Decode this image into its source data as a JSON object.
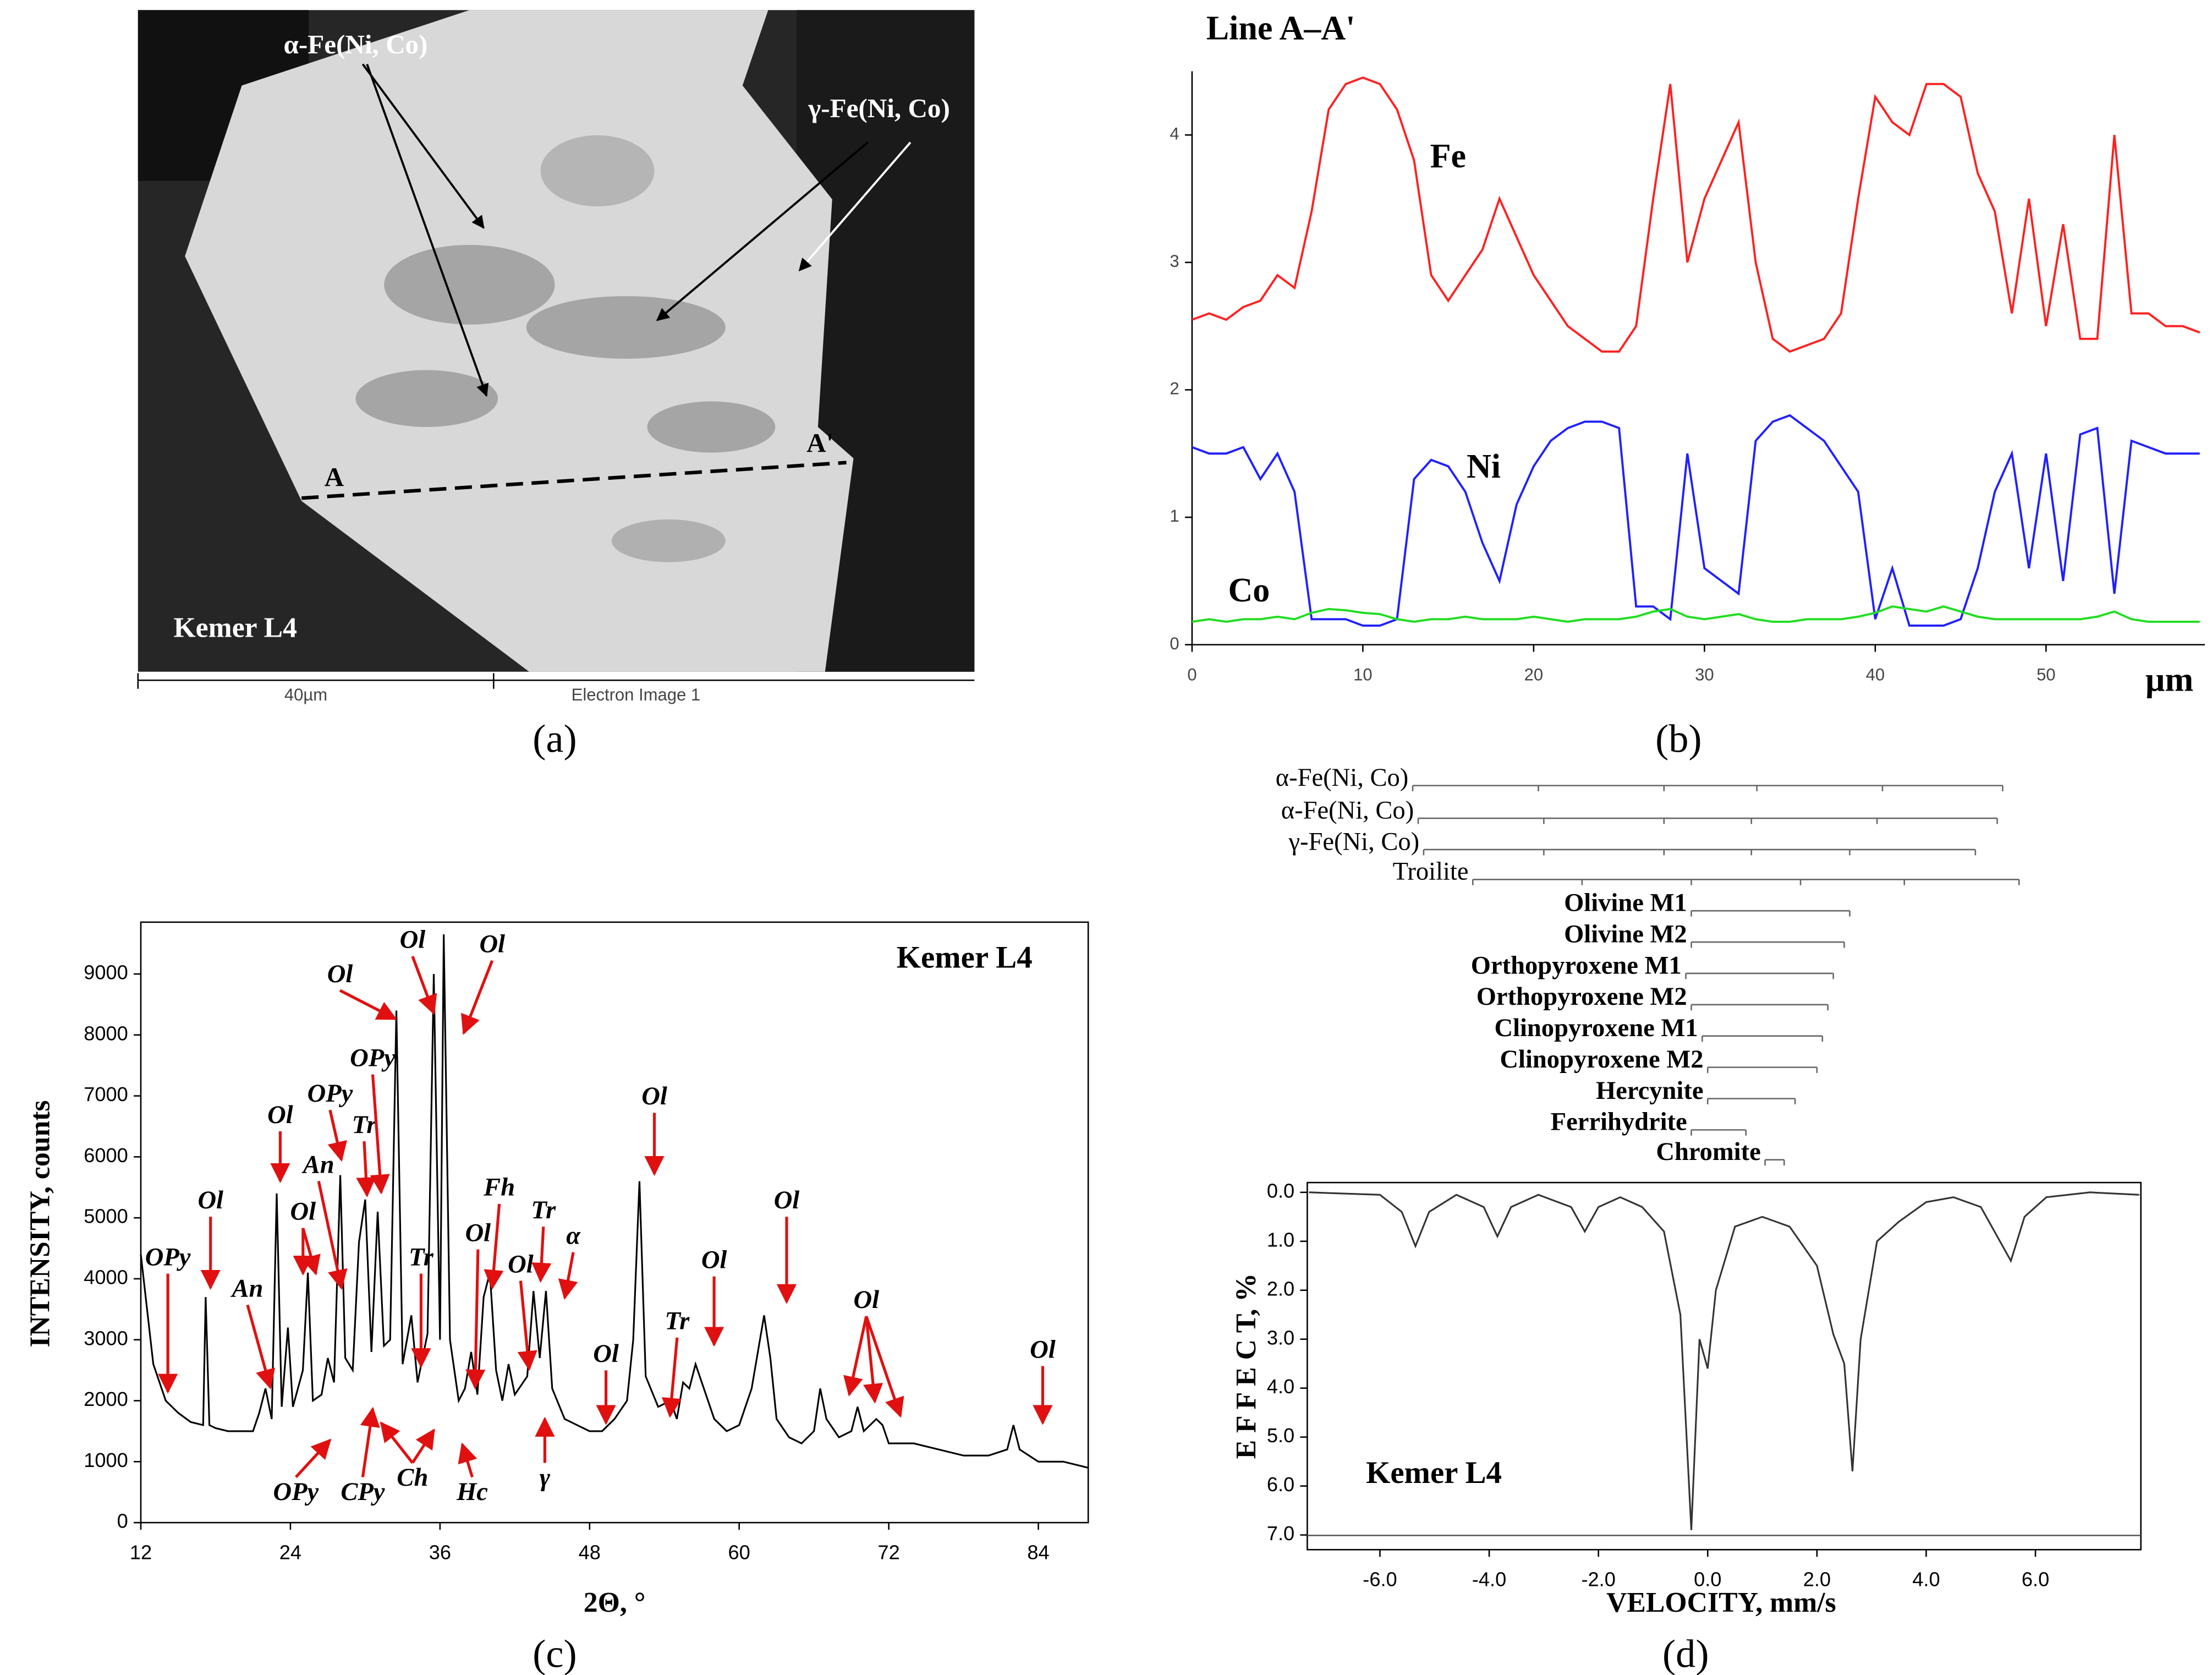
{
  "image_panel": {
    "phase_alpha": "α-Fe(Ni, Co)",
    "phase_gamma": "γ-Fe(Ni, Co)",
    "point_a": "A",
    "point_a2": "A'",
    "sample": "Kemer L4",
    "scale": "40µm",
    "caption": "Electron Image 1"
  },
  "panel_labels": [
    "(a)",
    "(b)",
    "(c)",
    "(d)"
  ],
  "chart_data": [
    {
      "type": "line",
      "title": "Line A–A'",
      "x_unit": "µm",
      "x": [
        0,
        1,
        2,
        3,
        4,
        5,
        6,
        7,
        8,
        9,
        10,
        11,
        12,
        13,
        14,
        15,
        16,
        17,
        18,
        19,
        20,
        21,
        22,
        23,
        24,
        25,
        26,
        27,
        28,
        29,
        30,
        31,
        32,
        33,
        34,
        35,
        36,
        37,
        38,
        39,
        40,
        41,
        42,
        43,
        44,
        45,
        46,
        47,
        48,
        49,
        50,
        51,
        52,
        53,
        54,
        55,
        56,
        57,
        58,
        59
      ],
      "xlim": [
        0,
        59.3
      ],
      "xticks": [
        0,
        10,
        20,
        30,
        40,
        50
      ],
      "ylim": [
        0,
        4.5
      ],
      "yticks": [
        0,
        1,
        2,
        3,
        4
      ],
      "series": [
        {
          "name": "Fe",
          "color": "#ff2020",
          "values": [
            2.55,
            2.6,
            2.55,
            2.65,
            2.7,
            2.9,
            2.8,
            3.4,
            4.2,
            4.4,
            4.45,
            4.4,
            4.2,
            3.8,
            2.9,
            2.7,
            2.9,
            3.1,
            3.5,
            3.2,
            2.9,
            2.7,
            2.5,
            2.4,
            2.3,
            2.3,
            2.5,
            3.5,
            4.4,
            3.0,
            3.5,
            3.8,
            4.1,
            3.0,
            2.4,
            2.3,
            2.35,
            2.4,
            2.6,
            3.5,
            4.3,
            4.1,
            4.0,
            4.4,
            4.4,
            4.3,
            3.7,
            3.4,
            2.6,
            3.5,
            2.5,
            3.3,
            2.4,
            2.4,
            4.0,
            2.6,
            2.6,
            2.5,
            2.5,
            2.45
          ]
        },
        {
          "name": "Ni",
          "color": "#2020ff",
          "values": [
            1.55,
            1.5,
            1.5,
            1.55,
            1.3,
            1.5,
            1.2,
            0.2,
            0.2,
            0.2,
            0.15,
            0.15,
            0.2,
            1.3,
            1.45,
            1.4,
            1.2,
            0.8,
            0.5,
            1.1,
            1.4,
            1.6,
            1.7,
            1.75,
            1.75,
            1.7,
            0.3,
            0.3,
            0.2,
            1.5,
            0.6,
            0.5,
            0.4,
            1.6,
            1.75,
            1.8,
            1.7,
            1.6,
            1.4,
            1.2,
            0.2,
            0.6,
            0.15,
            0.15,
            0.15,
            0.2,
            0.6,
            1.2,
            1.5,
            0.6,
            1.5,
            0.5,
            1.65,
            1.7,
            0.4,
            1.6,
            1.55,
            1.5,
            1.5,
            1.5
          ]
        },
        {
          "name": "Co",
          "color": "#20dd20",
          "values": [
            0.18,
            0.2,
            0.18,
            0.2,
            0.2,
            0.22,
            0.2,
            0.25,
            0.28,
            0.27,
            0.25,
            0.24,
            0.2,
            0.18,
            0.2,
            0.2,
            0.22,
            0.2,
            0.2,
            0.2,
            0.22,
            0.2,
            0.18,
            0.2,
            0.2,
            0.2,
            0.22,
            0.26,
            0.28,
            0.22,
            0.2,
            0.22,
            0.24,
            0.2,
            0.18,
            0.18,
            0.2,
            0.2,
            0.2,
            0.22,
            0.25,
            0.3,
            0.28,
            0.26,
            0.3,
            0.26,
            0.22,
            0.2,
            0.2,
            0.2,
            0.2,
            0.2,
            0.2,
            0.22,
            0.26,
            0.2,
            0.18,
            0.18,
            0.18,
            0.18
          ]
        }
      ]
    },
    {
      "type": "line",
      "title": "Kemer L4",
      "xlabel": "2Θ, °",
      "ylabel": "INTENSITY, counts",
      "color": "#000000",
      "x": [
        12,
        12.5,
        13,
        14,
        15,
        16,
        17,
        17.2,
        17.5,
        18,
        19,
        20,
        21,
        21.5,
        22,
        22.5,
        22.9,
        23.3,
        23.8,
        24.2,
        25,
        25.4,
        25.8,
        26.5,
        27,
        27.5,
        28,
        28.4,
        29,
        29.5,
        30,
        30.5,
        31,
        31.5,
        32,
        32.5,
        33,
        33.7,
        34.2,
        35,
        35.5,
        36,
        36.3,
        36.8,
        37.5,
        38,
        38.5,
        39,
        39.5,
        40,
        40.5,
        41,
        41.5,
        42,
        43,
        43.5,
        44,
        44.5,
        45,
        46,
        47,
        48,
        49,
        50,
        51,
        51.5,
        52,
        52.5,
        53.5,
        54.5,
        55,
        55.5,
        56,
        56.5,
        57,
        58,
        59,
        60,
        61,
        61.5,
        62,
        62.5,
        63,
        64,
        65,
        66,
        66.5,
        67,
        68,
        69,
        69.5,
        70,
        71,
        71.5,
        72,
        74,
        76,
        78,
        80,
        81.5,
        82,
        82.5,
        84,
        86,
        88
      ],
      "values": [
        4400,
        3500,
        2600,
        2000,
        1800,
        1650,
        1600,
        3700,
        1600,
        1550,
        1500,
        1500,
        1500,
        1800,
        2200,
        1700,
        5400,
        1900,
        3200,
        1900,
        2500,
        4100,
        2000,
        2100,
        2700,
        2300,
        5700,
        2700,
        2500,
        4600,
        5300,
        2800,
        5100,
        2900,
        3000,
        8400,
        2600,
        3400,
        2300,
        3100,
        9000,
        3000,
        9650,
        3000,
        2000,
        2200,
        2800,
        2100,
        3700,
        4100,
        2500,
        2000,
        2600,
        2100,
        2400,
        3800,
        2700,
        3800,
        2200,
        1700,
        1600,
        1500,
        1500,
        1700,
        2000,
        3000,
        5600,
        2400,
        1900,
        2000,
        1700,
        2300,
        2200,
        2600,
        2300,
        1700,
        1500,
        1600,
        2200,
        2800,
        3400,
        2700,
        1700,
        1400,
        1300,
        1500,
        2200,
        1700,
        1400,
        1500,
        1900,
        1500,
        1700,
        1600,
        1300,
        1300,
        1200,
        1100,
        1100,
        1200,
        1600,
        1200,
        1000,
        1000,
        900
      ],
      "xlim": [
        12,
        88
      ],
      "xticks": [
        12,
        24,
        36,
        48,
        60,
        72,
        84
      ],
      "ylim": [
        0,
        9850
      ],
      "yticks": [
        0,
        1000,
        2000,
        3000,
        4000,
        5000,
        6000,
        7000,
        8000,
        9000
      ],
      "annotations": [
        "OPy",
        "Ol",
        "An",
        "Ol",
        "Ol",
        "An",
        "OPy",
        "Tr",
        "OPy",
        "Ol",
        "Ol",
        "Ol",
        "Tr",
        "Ol",
        "Fh",
        "Ol",
        "Tr",
        "α",
        "Ol",
        "Ol",
        "Tr",
        "Ol",
        "Ol",
        "Ol",
        "Ol",
        "OPy",
        "CPy",
        "Ch",
        "Hc",
        "γ"
      ]
    },
    {
      "type": "line",
      "title": "Kemer L4",
      "xlabel": "VELOCITY, mm/s",
      "ylabel": "E F F E C T, %",
      "color": "#333333",
      "y_inverted": true,
      "x": [
        -7.3,
        -6,
        -5.6,
        -5.35,
        -5.1,
        -4.6,
        -4.1,
        -3.85,
        -3.6,
        -3.1,
        -2.5,
        -2.25,
        -2.0,
        -1.6,
        -1.2,
        -0.8,
        -0.5,
        -0.3,
        -0.15,
        0.0,
        0.15,
        0.5,
        1.0,
        1.5,
        2.0,
        2.3,
        2.5,
        2.65,
        2.8,
        3.1,
        3.5,
        4.0,
        4.5,
        5.0,
        5.3,
        5.55,
        5.8,
        6.2,
        7.0,
        7.9
      ],
      "values": [
        0.0,
        0.05,
        0.4,
        1.1,
        0.4,
        0.05,
        0.3,
        0.9,
        0.3,
        0.05,
        0.3,
        0.8,
        0.3,
        0.1,
        0.3,
        0.8,
        2.5,
        6.9,
        3.0,
        3.6,
        2.0,
        0.7,
        0.5,
        0.7,
        1.5,
        2.9,
        3.5,
        5.7,
        3.0,
        1.0,
        0.6,
        0.2,
        0.1,
        0.3,
        0.9,
        1.4,
        0.5,
        0.1,
        0.0,
        0.05
      ],
      "xlim": [
        -7.33,
        7.93
      ],
      "xticks": [
        {
          "value": -6,
          "label": "-6.0"
        },
        {
          "value": -4,
          "label": "-4.0"
        },
        {
          "value": -2,
          "label": "-2.0"
        },
        {
          "value": 0,
          "label": "0.0"
        },
        {
          "value": 2,
          "label": "2.0"
        },
        {
          "value": 4,
          "label": "4.0"
        },
        {
          "value": 6,
          "label": "6.0"
        }
      ],
      "ylim": [
        -0.2,
        7.3
      ],
      "yticks": [
        {
          "value": 0,
          "label": "0.0"
        },
        {
          "value": 1,
          "label": "1.0"
        },
        {
          "value": 2,
          "label": "2.0"
        },
        {
          "value": 3,
          "label": "3.0"
        },
        {
          "value": 4,
          "label": "4.0"
        },
        {
          "value": 5,
          "label": "5.0"
        },
        {
          "value": 6,
          "label": "6.0"
        },
        {
          "value": 7,
          "label": "7.0"
        }
      ],
      "components": [
        {
          "name": "α-Fe(Ni, Co)",
          "lines": [
            -5.4,
            -3.1,
            -0.8,
            0.9,
            3.2,
            5.4
          ]
        },
        {
          "name": "α-Fe(Ni, Co)",
          "lines": [
            -5.3,
            -3.0,
            -0.8,
            0.8,
            3.1,
            5.3
          ]
        },
        {
          "name": "γ-Fe(Ni, Co)",
          "lines": [
            -5.2,
            -3.0,
            -0.8,
            0.8,
            2.6,
            4.9
          ]
        },
        {
          "name": "Troilite",
          "lines": [
            -4.3,
            -2.3,
            -0.3,
            1.7,
            3.6,
            5.7
          ]
        },
        {
          "name": "Olivine M1",
          "lines": [
            -0.3,
            2.6
          ]
        },
        {
          "name": "Olivine M2",
          "lines": [
            -0.3,
            2.5
          ]
        },
        {
          "name": "Orthopyroxene M1",
          "lines": [
            -0.4,
            2.3
          ]
        },
        {
          "name": "Orthopyroxene M2",
          "lines": [
            -0.3,
            2.2
          ]
        },
        {
          "name": "Clinopyroxene M1",
          "lines": [
            -0.1,
            2.1
          ]
        },
        {
          "name": "Clinopyroxene M2",
          "lines": [
            0.0,
            2.0
          ]
        },
        {
          "name": "Hercynite",
          "lines": [
            0.0,
            1.6
          ]
        },
        {
          "name": "Ferrihydrite",
          "lines": [
            -0.3,
            0.7
          ]
        },
        {
          "name": "Chromite",
          "lines": [
            1.05,
            1.4
          ]
        }
      ]
    }
  ]
}
